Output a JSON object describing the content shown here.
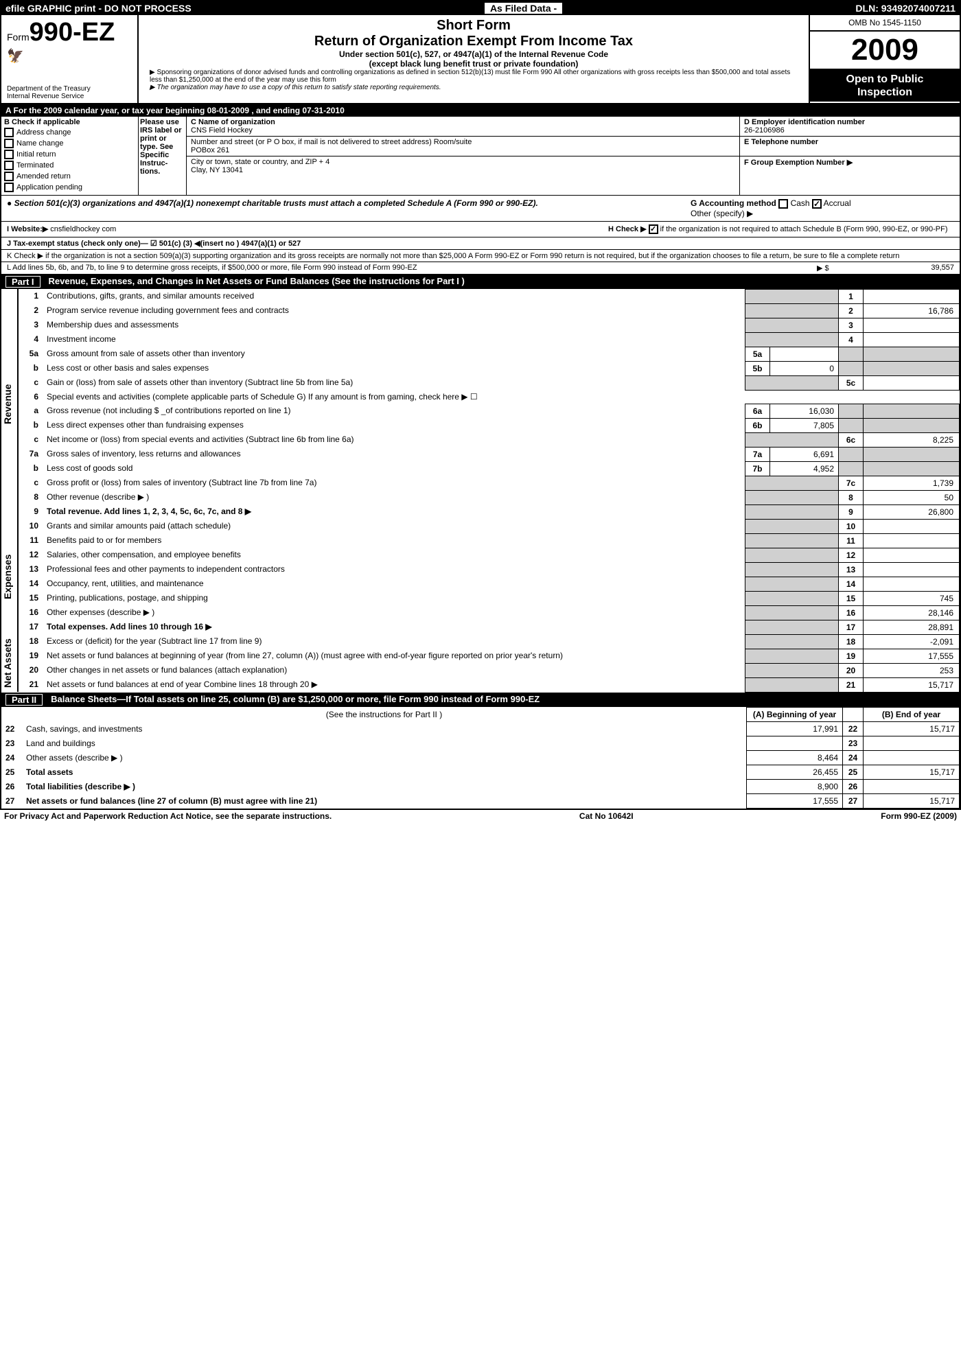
{
  "topbar": {
    "left": "efile GRAPHIC print - DO NOT PROCESS",
    "mid": "As Filed Data -",
    "right": "DLN: 93492074007211"
  },
  "header": {
    "form_prefix": "Form",
    "form_number": "990-EZ",
    "dept1": "Department of the Treasury",
    "dept2": "Internal Revenue Service",
    "short_form": "Short Form",
    "title": "Return of Organization Exempt From Income Tax",
    "sub1": "Under section 501(c), 527, or 4947(a)(1) of the Internal Revenue Code",
    "sub2": "(except black lung benefit trust or private foundation)",
    "note1": "▶ Sponsoring organizations of donor advised funds and controlling organizations as defined in section 512(b)(13) must file Form 990  All other organizations with gross receipts less than $500,000 and total assets less than $1,250,000 at the end of the year may use this form",
    "note2": "▶ The organization may have to use a copy of this return to satisfy state reporting requirements.",
    "omb": "OMB No  1545-1150",
    "year": "2009",
    "open1": "Open to Public",
    "open2": "Inspection"
  },
  "rowA": "A  For the 2009 calendar year, or tax year beginning 08-01-2009                        , and ending 07-31-2010",
  "sectionB": {
    "title": "B  Check if applicable",
    "items": [
      "Address change",
      "Name change",
      "Initial return",
      "Terminated",
      "Amended return",
      "Application pending"
    ],
    "label_text": "Please use IRS label or print or type. See Specific Instruc-tions.",
    "c_label": "C Name of organization",
    "org_name": "CNS Field Hockey",
    "addr_label": "Number and street (or P O  box, if mail is not delivered to street address) Room/suite",
    "addr": "POBox 261",
    "city_label": "City or town, state or country, and ZIP + 4",
    "city": "Clay, NY 13041",
    "d_label": "D Employer identification number",
    "ein": "26-2106986",
    "e_label": "E Telephone number",
    "f_label": "F Group Exemption Number  ▶"
  },
  "sect501": {
    "left": "● Section 501(c)(3) organizations and 4947(a)(1) nonexempt charitable trusts must attach a completed Schedule A (Form 990 or 990-EZ).",
    "g_label": "G Accounting method",
    "g_cash": "Cash",
    "g_accrual": "Accrual",
    "g_other": "Other (specify) ▶"
  },
  "website": {
    "label": "I Website:▶",
    "value": "cnsfieldhockey com",
    "h_label": "H  Check ▶",
    "h_text": "if the organization is not required to attach Schedule B (Form 990, 990-EZ, or 990-PF)"
  },
  "rowJ": "J Tax-exempt status (check only one)— ☑ 501(c) (3) ◀(insert no )   4947(a)(1) or    527",
  "rowK": "K Check ▶   if the organization is not a section 509(a)(3) supporting organization and its gross receipts are normally not more than $25,000  A Form 990-EZ or Form 990 return is not required, but if the organization chooses to file a return, be sure to file a complete return",
  "rowL": {
    "text": "L Add lines 5b, 6b, and 7b, to line 9 to determine gross receipts, if $500,000 or more, file Form 990 instead of Form 990-EZ",
    "arrow": "▶ $",
    "val": "39,557"
  },
  "part1_header": "Revenue, Expenses, and Changes in Net Assets or Fund Balances (See the instructions for Part I )",
  "revenue": [
    {
      "n": "1",
      "d": "Contributions, gifts, grants, and similar amounts received",
      "eb": "1",
      "ev": ""
    },
    {
      "n": "2",
      "d": "Program service revenue including government fees and contracts",
      "eb": "2",
      "ev": "16,786"
    },
    {
      "n": "3",
      "d": "Membership dues and assessments",
      "eb": "3",
      "ev": ""
    },
    {
      "n": "4",
      "d": "Investment income",
      "eb": "4",
      "ev": ""
    },
    {
      "n": "5a",
      "d": "Gross amount from sale of assets other than inventory",
      "mb": "5a",
      "mv": ""
    },
    {
      "n": "b",
      "d": "Less  cost or other basis and sales expenses",
      "mb": "5b",
      "mv": "0"
    },
    {
      "n": "c",
      "d": "Gain or (loss) from sale of assets other than inventory (Subtract line 5b from line 5a)",
      "eb": "5c",
      "ev": ""
    },
    {
      "n": "6",
      "d": "Special events and activities (complete applicable parts of Schedule G)  If any amount is from gaming, check here ▶  ☐"
    },
    {
      "n": "a",
      "d": "Gross revenue (not including $ _of contributions reported on line 1)",
      "mb": "6a",
      "mv": "16,030"
    },
    {
      "n": "b",
      "d": "Less  direct expenses other than fundraising expenses",
      "mb": "6b",
      "mv": "7,805"
    },
    {
      "n": "c",
      "d": "Net income or (loss) from special events and activities (Subtract line 6b from line 6a)",
      "eb": "6c",
      "ev": "8,225"
    },
    {
      "n": "7a",
      "d": "Gross sales of inventory, less returns and allowances",
      "mb": "7a",
      "mv": "6,691"
    },
    {
      "n": "b",
      "d": "Less  cost of goods sold",
      "mb": "7b",
      "mv": "4,952"
    },
    {
      "n": "c",
      "d": "Gross profit or (loss) from sales of inventory (Subtract line 7b from line 7a)",
      "eb": "7c",
      "ev": "1,739"
    },
    {
      "n": "8",
      "d": "Other revenue (describe ▶                                                                                           )",
      "eb": "8",
      "ev": "50"
    },
    {
      "n": "9",
      "d": "Total revenue. Add lines 1, 2, 3, 4, 5c, 6c, 7c, and 8                                           ▶",
      "eb": "9",
      "ev": "26,800",
      "bold": true
    }
  ],
  "expenses": [
    {
      "n": "10",
      "d": "Grants and similar amounts paid (attach schedule)",
      "eb": "10",
      "ev": ""
    },
    {
      "n": "11",
      "d": "Benefits paid to or for members",
      "eb": "11",
      "ev": ""
    },
    {
      "n": "12",
      "d": "Salaries, other compensation, and employee benefits",
      "eb": "12",
      "ev": ""
    },
    {
      "n": "13",
      "d": "Professional fees and other payments to independent contractors",
      "eb": "13",
      "ev": ""
    },
    {
      "n": "14",
      "d": "Occupancy, rent, utilities, and maintenance",
      "eb": "14",
      "ev": ""
    },
    {
      "n": "15",
      "d": "Printing, publications, postage, and shipping",
      "eb": "15",
      "ev": "745"
    },
    {
      "n": "16",
      "d": "Other expenses (describe ▶                                                                                      )",
      "eb": "16",
      "ev": "28,146"
    },
    {
      "n": "17",
      "d": "Total expenses. Add lines 10 through 16                                                          ▶",
      "eb": "17",
      "ev": "28,891",
      "bold": true
    }
  ],
  "netassets": [
    {
      "n": "18",
      "d": "Excess or (deficit) for the year (Subtract line 17 from line 9)",
      "eb": "18",
      "ev": "-2,091"
    },
    {
      "n": "19",
      "d": "Net assets or fund balances at beginning of year (from line 27, column (A)) (must agree with end-of-year figure reported on prior year's return)",
      "eb": "19",
      "ev": "17,555"
    },
    {
      "n": "20",
      "d": "Other changes in net assets or fund balances (attach explanation)",
      "eb": "20",
      "ev": "253"
    },
    {
      "n": "21",
      "d": "Net assets or fund balances at end of year  Combine lines 18 through 20                      ▶",
      "eb": "21",
      "ev": "15,717"
    }
  ],
  "part2_header": "Balance Sheets—If Total assets on line 25, column (B) are $1,250,000 or more, file Form 990 instead of Form 990-EZ",
  "balance_note": "(See the instructions for Part II )",
  "balance_cols": [
    "(A) Beginning of year",
    "",
    "(B) End of year"
  ],
  "balance": [
    {
      "n": "22",
      "d": "Cash, savings, and investments",
      "a": "17,991",
      "b": "22",
      "c": "15,717"
    },
    {
      "n": "23",
      "d": "Land and buildings",
      "a": "",
      "b": "23",
      "c": ""
    },
    {
      "n": "24",
      "d": "Other assets (describe ▶                                                                               )",
      "a": "8,464",
      "b": "24",
      "c": ""
    },
    {
      "n": "25",
      "d": "Total assets",
      "a": "26,455",
      "b": "25",
      "c": "15,717",
      "bold": true
    },
    {
      "n": "26",
      "d": "Total liabilities (describe ▶                                                                          )",
      "a": "8,900",
      "b": "26",
      "c": "",
      "bold": true
    },
    {
      "n": "27",
      "d": "Net assets or fund balances (line 27 of column (B) must agree with line 21)",
      "a": "17,555",
      "b": "27",
      "c": "15,717",
      "bold": true
    }
  ],
  "footer": {
    "left": "For Privacy Act and Paperwork Reduction Act Notice, see the separate instructions.",
    "mid": "Cat  No  10642I",
    "right": "Form 990-EZ (2009)"
  }
}
